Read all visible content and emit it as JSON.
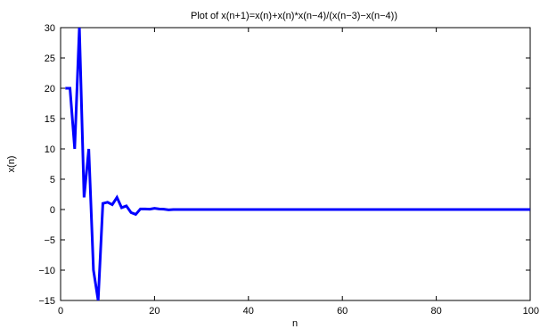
{
  "chart_data": {
    "type": "line",
    "title": "Plot of x(n+1)=x(n)+x(n)*x(n−4)/(x(n−3)−x(n−4))",
    "xlabel": "n",
    "ylabel": "x(n)",
    "xlim": [
      0,
      100
    ],
    "ylim": [
      -15,
      30
    ],
    "xticks": [
      "0",
      "20",
      "40",
      "60",
      "80",
      "100"
    ],
    "yticks": [
      "−15",
      "−10",
      "−5",
      "0",
      "5",
      "10",
      "15",
      "20",
      "25",
      "30"
    ],
    "grid": false,
    "line_color": "#0000ff",
    "series": [
      {
        "x": [
          1,
          2,
          3,
          4,
          5,
          6,
          7,
          8,
          9,
          10,
          11,
          12,
          13,
          14,
          15,
          16,
          17,
          18,
          19,
          20,
          21,
          22,
          23,
          24,
          25,
          30,
          40,
          50,
          60,
          70,
          80,
          90,
          100
        ],
        "values": [
          20,
          20,
          10,
          30,
          2,
          10,
          -10,
          -15,
          1,
          1.2,
          0.8,
          2,
          0.3,
          0.6,
          -0.5,
          -0.8,
          0.1,
          0.1,
          0.05,
          0.2,
          0.1,
          0.05,
          -0.05,
          0,
          0,
          0,
          0,
          0,
          0,
          0,
          0,
          0,
          0
        ]
      }
    ]
  }
}
